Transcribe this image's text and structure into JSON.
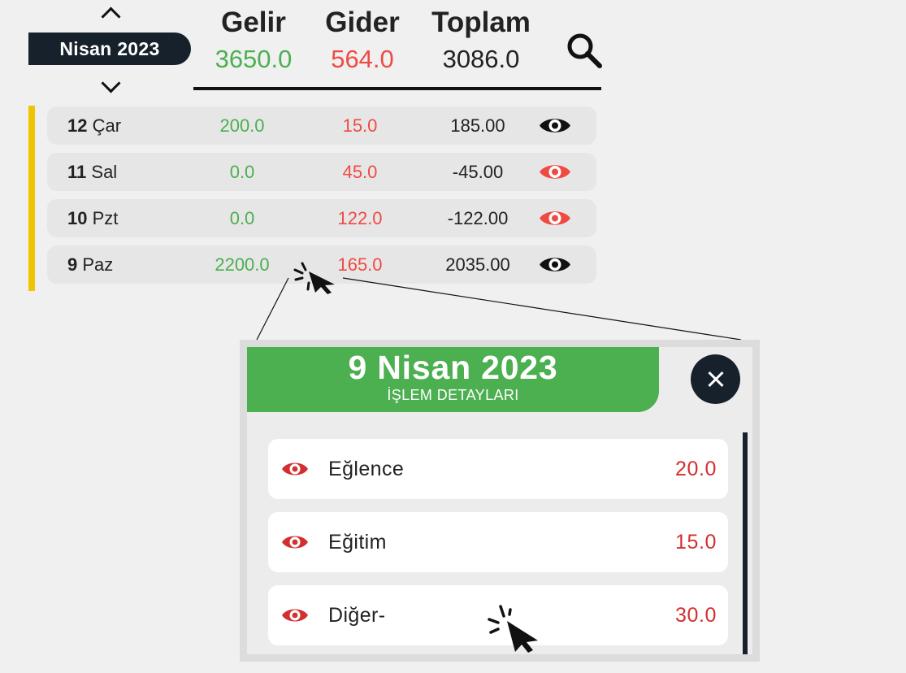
{
  "month_selector": {
    "label": "Nisan 2023"
  },
  "summary": {
    "income_label": "Gelir",
    "income_value": "3650.0",
    "expense_label": "Gider",
    "expense_value": "564.0",
    "total_label": "Toplam",
    "total_value": "3086.0"
  },
  "days": [
    {
      "num": "12",
      "weekday": "Çar",
      "income": "200.0",
      "expense": "15.0",
      "total": "185.00",
      "eye_color": "#111111"
    },
    {
      "num": "11",
      "weekday": "Sal",
      "income": "0.0",
      "expense": "45.0",
      "total": "-45.00",
      "eye_color": "#ef4b43"
    },
    {
      "num": "10",
      "weekday": "Pzt",
      "income": "0.0",
      "expense": "122.0",
      "total": "-122.00",
      "eye_color": "#ef4b43"
    },
    {
      "num": "9",
      "weekday": "Paz",
      "income": "2200.0",
      "expense": "165.0",
      "total": "2035.00",
      "eye_color": "#111111"
    }
  ],
  "popup": {
    "date": "9 Nisan 2023",
    "subtitle": "İŞLEM DETAYLARI",
    "items": [
      {
        "name": "Eğlence",
        "amount": "20.0"
      },
      {
        "name": "Eğitim",
        "amount": "15.0"
      },
      {
        "name": "Diğer-",
        "amount": "30.0"
      }
    ]
  },
  "colors": {
    "income": "#4caf50",
    "expense": "#ef4b43",
    "accent_dark": "#17212b",
    "highlight": "#efc400"
  }
}
